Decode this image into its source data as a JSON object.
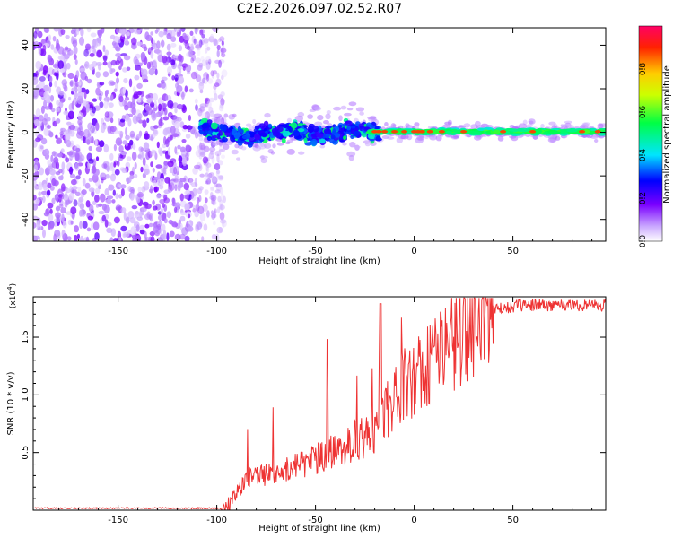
{
  "title": "C2E2.2026.097.02.52.R07",
  "chart_data": [
    {
      "type": "heatmap",
      "name": "spectrogram",
      "xlabel": "Height of straight line (km)",
      "ylabel": "Frequency (Hz)",
      "xlim": [
        -193,
        97
      ],
      "ylim": [
        -50,
        48
      ],
      "xticks": [
        -150,
        -100,
        -50,
        0,
        50
      ],
      "yticks": [
        -40,
        -20,
        0,
        20,
        40
      ],
      "colorbar": {
        "label": "Normalized spectral amplitude",
        "range": [
          0.0,
          1.0
        ],
        "ticks": [
          0.0,
          0.2,
          0.4,
          0.6,
          0.8
        ],
        "colors": [
          "#ffffff",
          "#c9a6ff",
          "#7a00ff",
          "#0000ff",
          "#00e5ff",
          "#00ff44",
          "#ccff00",
          "#ffcc00",
          "#ff2200",
          "#ff0066"
        ]
      },
      "description_regions": {
        "noise_region_x": [
          -193,
          -102
        ],
        "transition_x": [
          -110,
          -20
        ],
        "coherent_tone_x": [
          -20,
          97
        ],
        "tone_frequency_hz": 0
      }
    },
    {
      "type": "line",
      "name": "snr",
      "xlabel": "Height of straight line (km)",
      "ylabel": "SNR (10 * v/v)",
      "scale_label": "(x10",
      "scale_exp": "4",
      "xlim": [
        -193,
        97
      ],
      "ylim": [
        0,
        18500
      ],
      "xticks": [
        -150,
        -100,
        -50,
        0,
        50
      ],
      "yticks": [
        5000,
        10000,
        15000
      ],
      "ytick_labels": [
        "0.5",
        "1.0",
        "1.5"
      ],
      "color": "#ee3333",
      "envelope": {
        "x": [
          -193,
          -100,
          -95,
          -90,
          -85,
          -80,
          -70,
          -60,
          -50,
          -40,
          -30,
          -25,
          -20,
          -15,
          -10,
          0,
          10,
          20,
          30,
          40,
          50,
          60,
          70,
          80,
          90,
          97
        ],
        "y": [
          0,
          0,
          300,
          1500,
          2800,
          3000,
          3300,
          3900,
          4500,
          5300,
          6200,
          6400,
          6600,
          8500,
          10200,
          12000,
          13800,
          15300,
          16500,
          17300,
          17700,
          17800,
          17800,
          17800,
          17800,
          17800
        ]
      }
    }
  ]
}
